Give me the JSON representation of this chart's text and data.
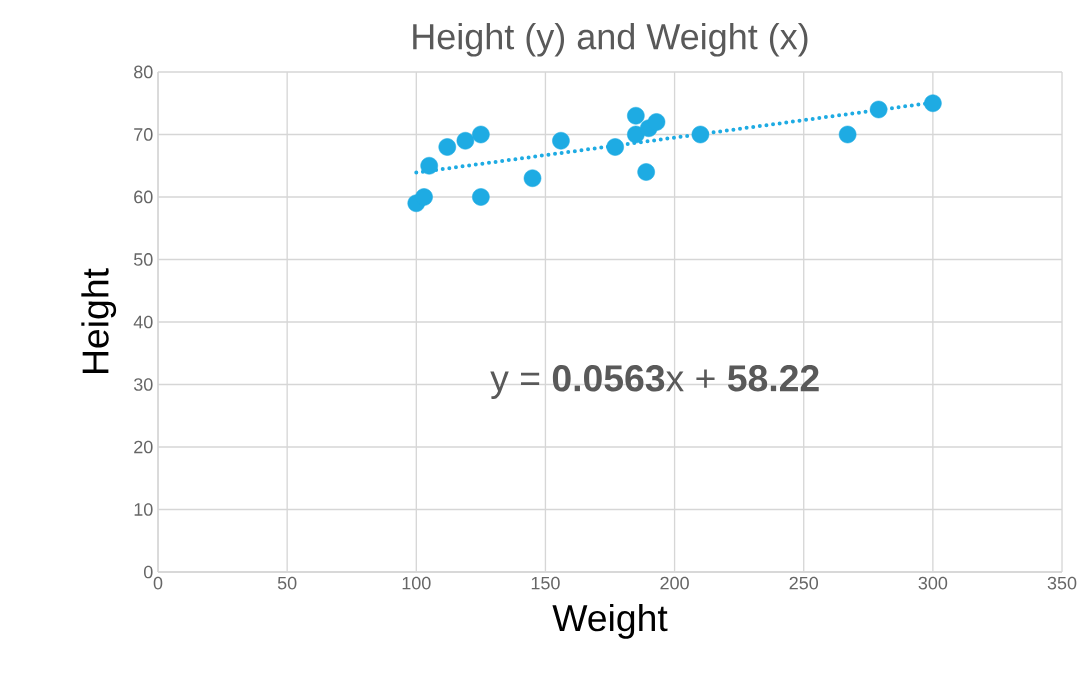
{
  "chart_data": {
    "type": "scatter",
    "title": "Height (y) and Weight (x)",
    "xlabel": "Weight",
    "ylabel": "Height",
    "annotations": [
      "y = **0.0563**x + **58.22**"
    ],
    "xlim": [
      0,
      350
    ],
    "xticks": [
      0,
      50,
      100,
      150,
      200,
      250,
      300,
      350
    ],
    "ylim": [
      0,
      80
    ],
    "yticks": [
      0,
      10,
      20,
      30,
      40,
      50,
      60,
      70,
      80
    ],
    "grid": true,
    "series": [
      {
        "color": "#1eabe3",
        "marker": "circle",
        "x": [
          100,
          103,
          105,
          112,
          119,
          125,
          125,
          145,
          156,
          177,
          185,
          185,
          189,
          190,
          193,
          210,
          267,
          279,
          300
        ],
        "values": [
          59,
          60,
          65,
          68,
          69,
          70,
          60,
          63,
          69,
          68,
          73,
          70,
          64,
          71,
          72,
          70,
          70,
          74,
          75
        ]
      },
      {
        "type": "line",
        "color": "#1eabe3",
        "marker": "none",
        "line_style": "dotted",
        "x": [
          100,
          300
        ],
        "values": [
          63.9,
          75.1
        ]
      }
    ]
  }
}
